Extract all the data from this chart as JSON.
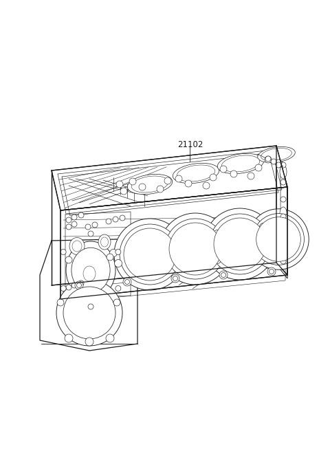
{
  "background_color": "#ffffff",
  "line_color": "#1a1a1a",
  "part_number": "21102",
  "figsize": [
    4.8,
    6.56
  ],
  "dpi": 100,
  "label_fontsize": 8.5
}
